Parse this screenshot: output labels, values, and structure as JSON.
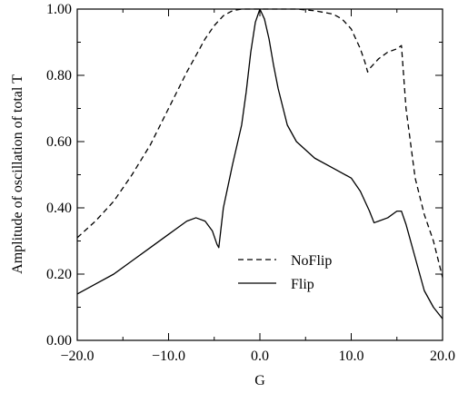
{
  "chart_data": {
    "type": "line",
    "title": "",
    "xlabel": "G",
    "ylabel": "Amplitude of oscillation of total T",
    "xlim": [
      -20.0,
      20.0
    ],
    "ylim": [
      0.0,
      1.0
    ],
    "xticks": [
      -20.0,
      -10.0,
      0.0,
      10.0,
      20.0
    ],
    "xtick_labels": [
      "−20.0",
      "−10.0",
      "0.0",
      "10.0",
      "20.0"
    ],
    "yticks": [
      0.0,
      0.2,
      0.4,
      0.6,
      0.8,
      1.0
    ],
    "ytick_labels": [
      "0.00",
      "0.20",
      "0.40",
      "0.60",
      "0.80",
      "1.00"
    ],
    "grid": false,
    "legend_position": "lower-center",
    "series": [
      {
        "name": "NoFlip",
        "style": "dashed",
        "color": "#000000",
        "x": [
          -20,
          -18,
          -16,
          -14,
          -12,
          -10,
          -8,
          -6,
          -5,
          -4,
          -3,
          -2,
          -1,
          0,
          2,
          4,
          6,
          8,
          9,
          10,
          11,
          11.5,
          11.8,
          12,
          13,
          14,
          15,
          15.5,
          16,
          17,
          18,
          19,
          20
        ],
        "y": [
          0.31,
          0.36,
          0.42,
          0.5,
          0.59,
          0.7,
          0.81,
          0.91,
          0.95,
          0.98,
          0.995,
          1.0,
          1.0,
          1.0,
          1.0,
          1.0,
          0.995,
          0.985,
          0.97,
          0.94,
          0.88,
          0.84,
          0.81,
          0.82,
          0.85,
          0.87,
          0.88,
          0.89,
          0.7,
          0.49,
          0.38,
          0.3,
          0.19
        ]
      },
      {
        "name": "Flip",
        "style": "solid",
        "color": "#000000",
        "x": [
          -20,
          -18,
          -16,
          -14,
          -12,
          -10,
          -8,
          -7,
          -6,
          -5.2,
          -4.7,
          -4.5,
          -4,
          -3,
          -2,
          -1.5,
          -1,
          -0.5,
          0,
          0.5,
          1,
          1.5,
          2,
          3,
          4,
          6,
          8,
          10,
          11,
          12,
          12.5,
          13,
          14,
          15,
          15.5,
          16,
          17,
          18,
          19,
          20
        ],
        "y": [
          0.14,
          0.17,
          0.2,
          0.24,
          0.28,
          0.32,
          0.36,
          0.37,
          0.36,
          0.33,
          0.29,
          0.28,
          0.4,
          0.53,
          0.65,
          0.75,
          0.87,
          0.96,
          1.0,
          0.97,
          0.91,
          0.83,
          0.76,
          0.65,
          0.6,
          0.55,
          0.52,
          0.49,
          0.45,
          0.39,
          0.355,
          0.36,
          0.37,
          0.39,
          0.39,
          0.35,
          0.25,
          0.15,
          0.1,
          0.065
        ]
      }
    ]
  }
}
